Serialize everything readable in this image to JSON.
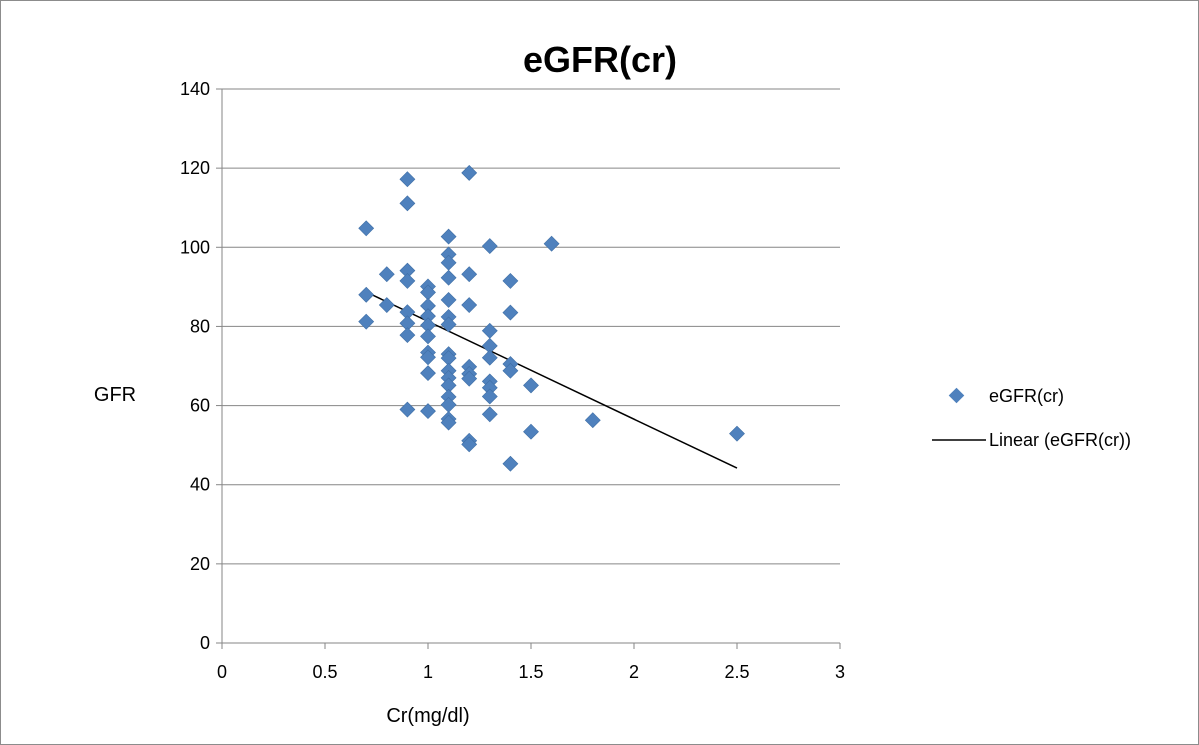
{
  "chart_data": {
    "type": "scatter",
    "title": "eGFR(cr)",
    "xlabel": "Cr(mg/dl)",
    "ylabel": "GFR",
    "xlim": [
      0,
      3
    ],
    "ylim": [
      0,
      140
    ],
    "x_ticks": [
      "0",
      "0.5",
      "1",
      "1.5",
      "2",
      "2.5",
      "3"
    ],
    "y_ticks": [
      "0",
      "20",
      "40",
      "60",
      "80",
      "100",
      "120",
      "140"
    ],
    "grid": "horizontal",
    "legend_position": "right",
    "colors": {
      "points": "#4f81bd",
      "trendline": "#000000",
      "grid": "#868686"
    },
    "series": [
      {
        "name": "eGFR(cr)",
        "marker": "diamond",
        "points": [
          [
            0.7,
            104.8
          ],
          [
            0.7,
            88.0
          ],
          [
            0.7,
            81.2
          ],
          [
            0.8,
            93.2
          ],
          [
            0.8,
            85.4
          ],
          [
            0.9,
            117.2
          ],
          [
            0.9,
            111.1
          ],
          [
            0.9,
            94.1
          ],
          [
            0.9,
            91.5
          ],
          [
            0.9,
            83.6
          ],
          [
            0.9,
            80.8
          ],
          [
            0.9,
            77.8
          ],
          [
            0.9,
            59.0
          ],
          [
            1.0,
            90.1
          ],
          [
            1.0,
            88.6
          ],
          [
            1.0,
            85.2
          ],
          [
            1.0,
            82.6
          ],
          [
            1.0,
            80.3
          ],
          [
            1.0,
            77.5
          ],
          [
            1.0,
            73.4
          ],
          [
            1.0,
            72.2
          ],
          [
            1.0,
            68.2
          ],
          [
            1.0,
            58.6
          ],
          [
            1.1,
            102.7
          ],
          [
            1.1,
            98.2
          ],
          [
            1.1,
            96.1
          ],
          [
            1.1,
            92.3
          ],
          [
            1.1,
            86.7
          ],
          [
            1.1,
            82.4
          ],
          [
            1.1,
            80.5
          ],
          [
            1.1,
            73.0
          ],
          [
            1.1,
            72.0
          ],
          [
            1.1,
            68.8
          ],
          [
            1.1,
            67.0
          ],
          [
            1.1,
            65.1
          ],
          [
            1.1,
            62.2
          ],
          [
            1.1,
            60.2
          ],
          [
            1.1,
            56.6
          ],
          [
            1.1,
            55.7
          ],
          [
            1.2,
            118.8
          ],
          [
            1.2,
            93.2
          ],
          [
            1.2,
            85.4
          ],
          [
            1.2,
            69.8
          ],
          [
            1.2,
            68.0
          ],
          [
            1.2,
            66.8
          ],
          [
            1.2,
            51.1
          ],
          [
            1.2,
            50.2
          ],
          [
            1.3,
            100.3
          ],
          [
            1.3,
            78.9
          ],
          [
            1.3,
            75.1
          ],
          [
            1.3,
            72.1
          ],
          [
            1.3,
            66.1
          ],
          [
            1.3,
            64.5
          ],
          [
            1.3,
            62.3
          ],
          [
            1.3,
            57.8
          ],
          [
            1.4,
            91.5
          ],
          [
            1.4,
            83.5
          ],
          [
            1.4,
            70.5
          ],
          [
            1.4,
            68.8
          ],
          [
            1.4,
            45.3
          ],
          [
            1.5,
            65.1
          ],
          [
            1.5,
            53.4
          ],
          [
            1.6,
            100.9
          ],
          [
            1.8,
            56.3
          ],
          [
            2.5,
            52.9
          ]
        ]
      },
      {
        "name": "Linear (eGFR(cr))",
        "type": "trendline",
        "x": [
          0.7,
          2.5
        ],
        "y": [
          88.7,
          44.2
        ]
      }
    ]
  }
}
